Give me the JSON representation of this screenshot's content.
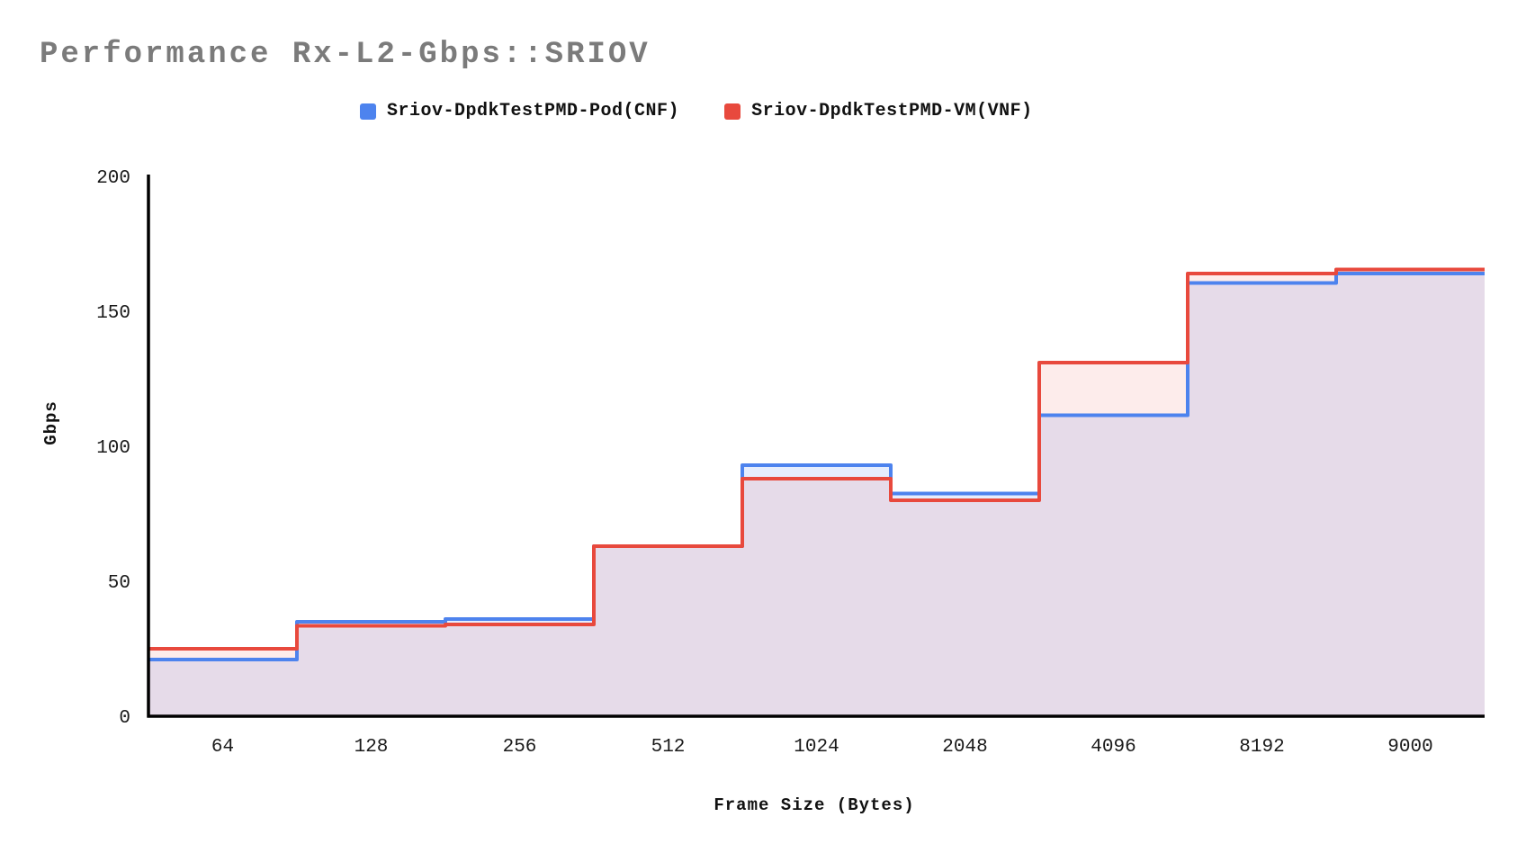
{
  "header": {
    "title": "Performance Rx-L2-Gbps::SRIOV",
    "title_color": "#7b7b7b"
  },
  "legend": {
    "position": "top",
    "items": [
      {
        "label": "Sriov-DpdkTestPMD-Pod(CNF)",
        "color": "#4d83ee"
      },
      {
        "label": "Sriov-DpdkTestPMD-VM(VNF)",
        "color": "#e8493d"
      }
    ]
  },
  "chart_data": {
    "type": "area",
    "subtype": "stepped-area",
    "title": "Performance Rx-L2-Gbps::SRIOV",
    "categories": [
      "64",
      "128",
      "256",
      "512",
      "1024",
      "2048",
      "4096",
      "8192",
      "9000"
    ],
    "series": [
      {
        "name": "Sriov-DpdkTestPMD-Pod(CNF)",
        "color": "#4d83ee",
        "fill": "rgba(77,131,238,0.14)",
        "values": [
          21,
          35,
          36,
          63,
          93,
          82.5,
          111.5,
          160.5,
          164
        ]
      },
      {
        "name": "Sriov-DpdkTestPMD-VM(VNF)",
        "color": "#e8493d",
        "fill": "rgba(232,73,61,0.10)",
        "values": [
          25,
          33.5,
          34,
          63,
          88,
          80,
          131,
          164,
          165.5
        ]
      }
    ],
    "xlabel": "Frame Size (Bytes)",
    "ylabel": "Gbps",
    "ylim": [
      0,
      200
    ],
    "y_ticks": [
      0,
      50,
      100,
      150,
      200
    ],
    "grid": false,
    "legend_position": "top",
    "axis_color": "#000000",
    "tick_label_color": "#1a1a1a"
  }
}
